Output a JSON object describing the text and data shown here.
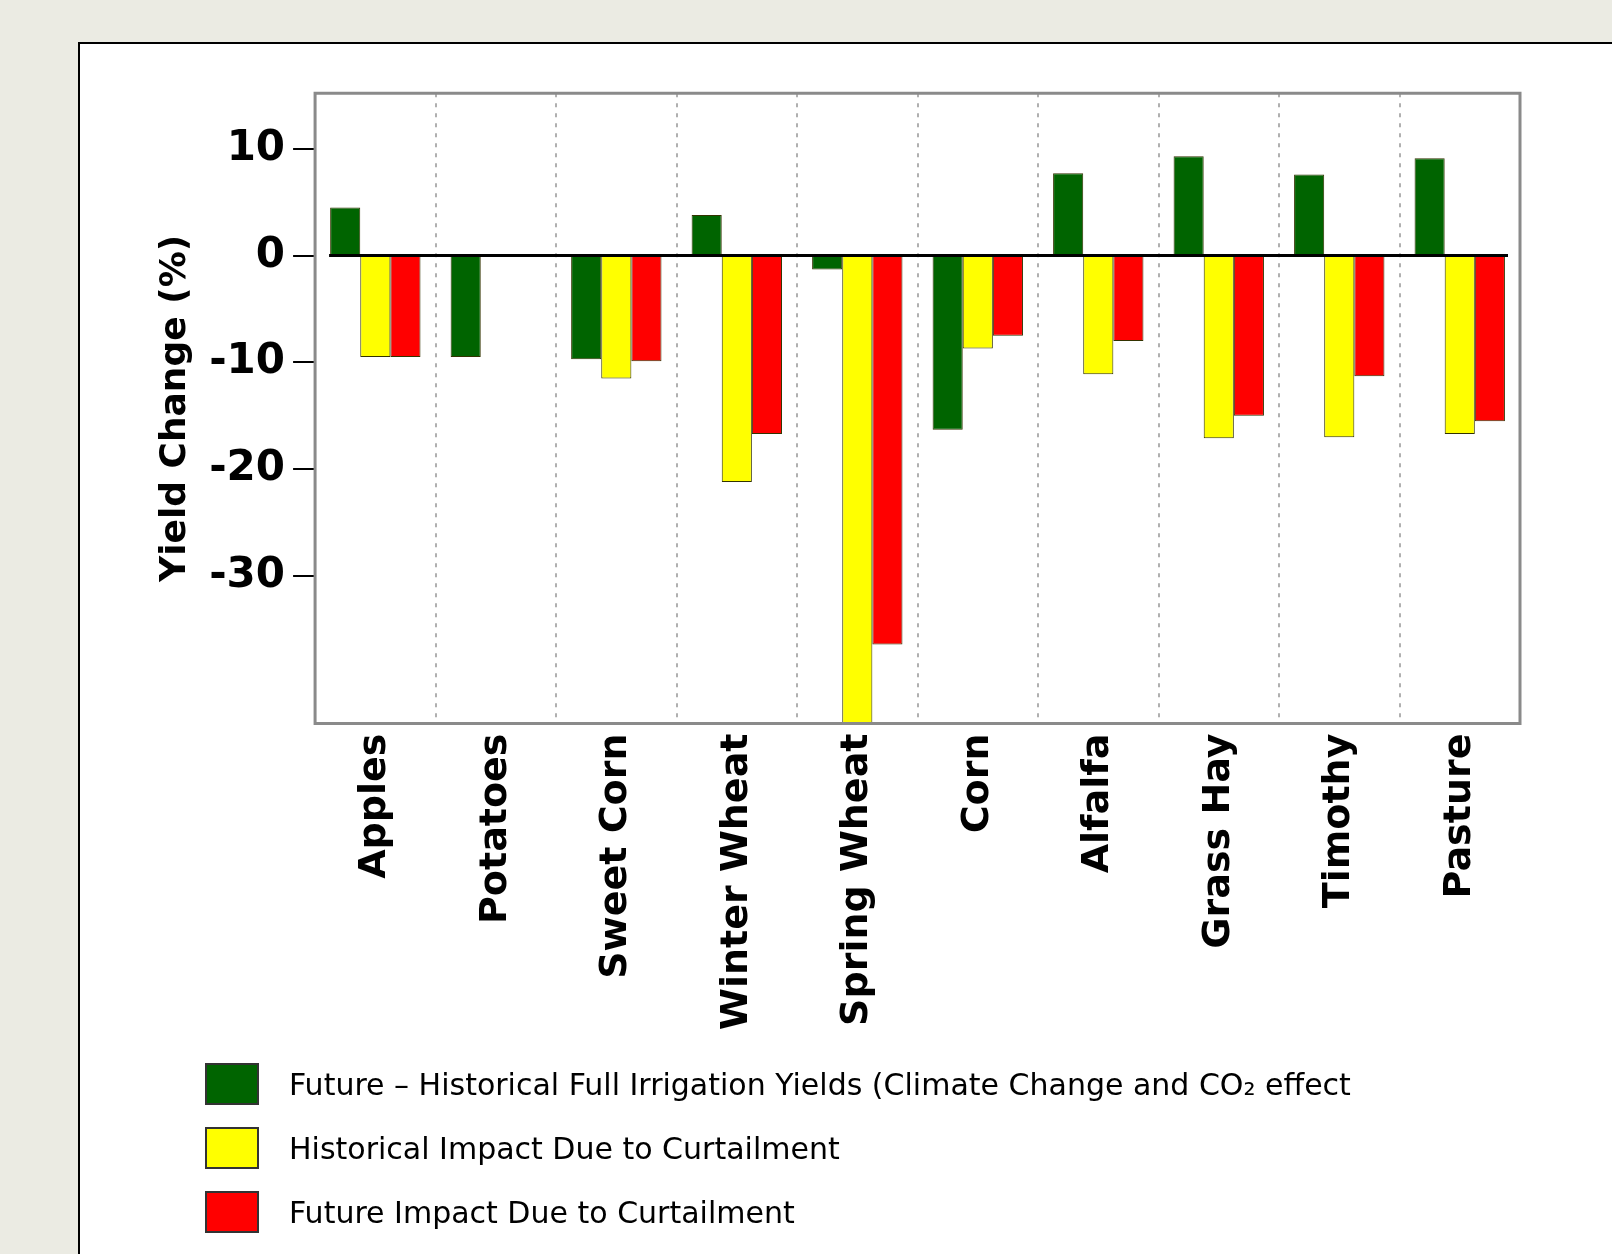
{
  "chart_data": {
    "type": "bar",
    "ylabel": "Yield Change (%)",
    "categories": [
      "Apples",
      "Potatoes",
      "Sweet Corn",
      "Winter Wheat",
      "Spring Wheat",
      "Corn",
      "Alfalfa",
      "Grass Hay",
      "Timothy",
      "Pasture"
    ],
    "series": [
      {
        "name": "Future – Historical Full Irrigation Yields (Climate Change and CO₂ effect",
        "color": "#006400",
        "values": [
          4.5,
          -9.5,
          -9.7,
          3.8,
          -1.3,
          -16.3,
          7.7,
          9.3,
          7.6,
          9.1
        ]
      },
      {
        "name": "Historical Impact Due to Curtailment",
        "color": "#ffff00",
        "values": [
          -9.5,
          null,
          -11.5,
          -21.2,
          -43.8,
          -8.7,
          -11.1,
          -17.1,
          -17.0,
          -16.7
        ]
      },
      {
        "name": "Future Impact Due to Curtailment",
        "color": "#ff0000",
        "values": [
          -9.5,
          null,
          -9.9,
          -16.7,
          -36.4,
          -7.5,
          -8.0,
          -15.0,
          -11.3,
          -15.5
        ]
      }
    ],
    "ylim": [
      -43.8,
      15.2
    ],
    "yticks": [
      10,
      0,
      -10,
      -20,
      -30
    ],
    "ref_lines": [
      {
        "axis": "y",
        "value": 0,
        "color": "#000000"
      }
    ],
    "grid": "x",
    "legend": "bottom"
  }
}
